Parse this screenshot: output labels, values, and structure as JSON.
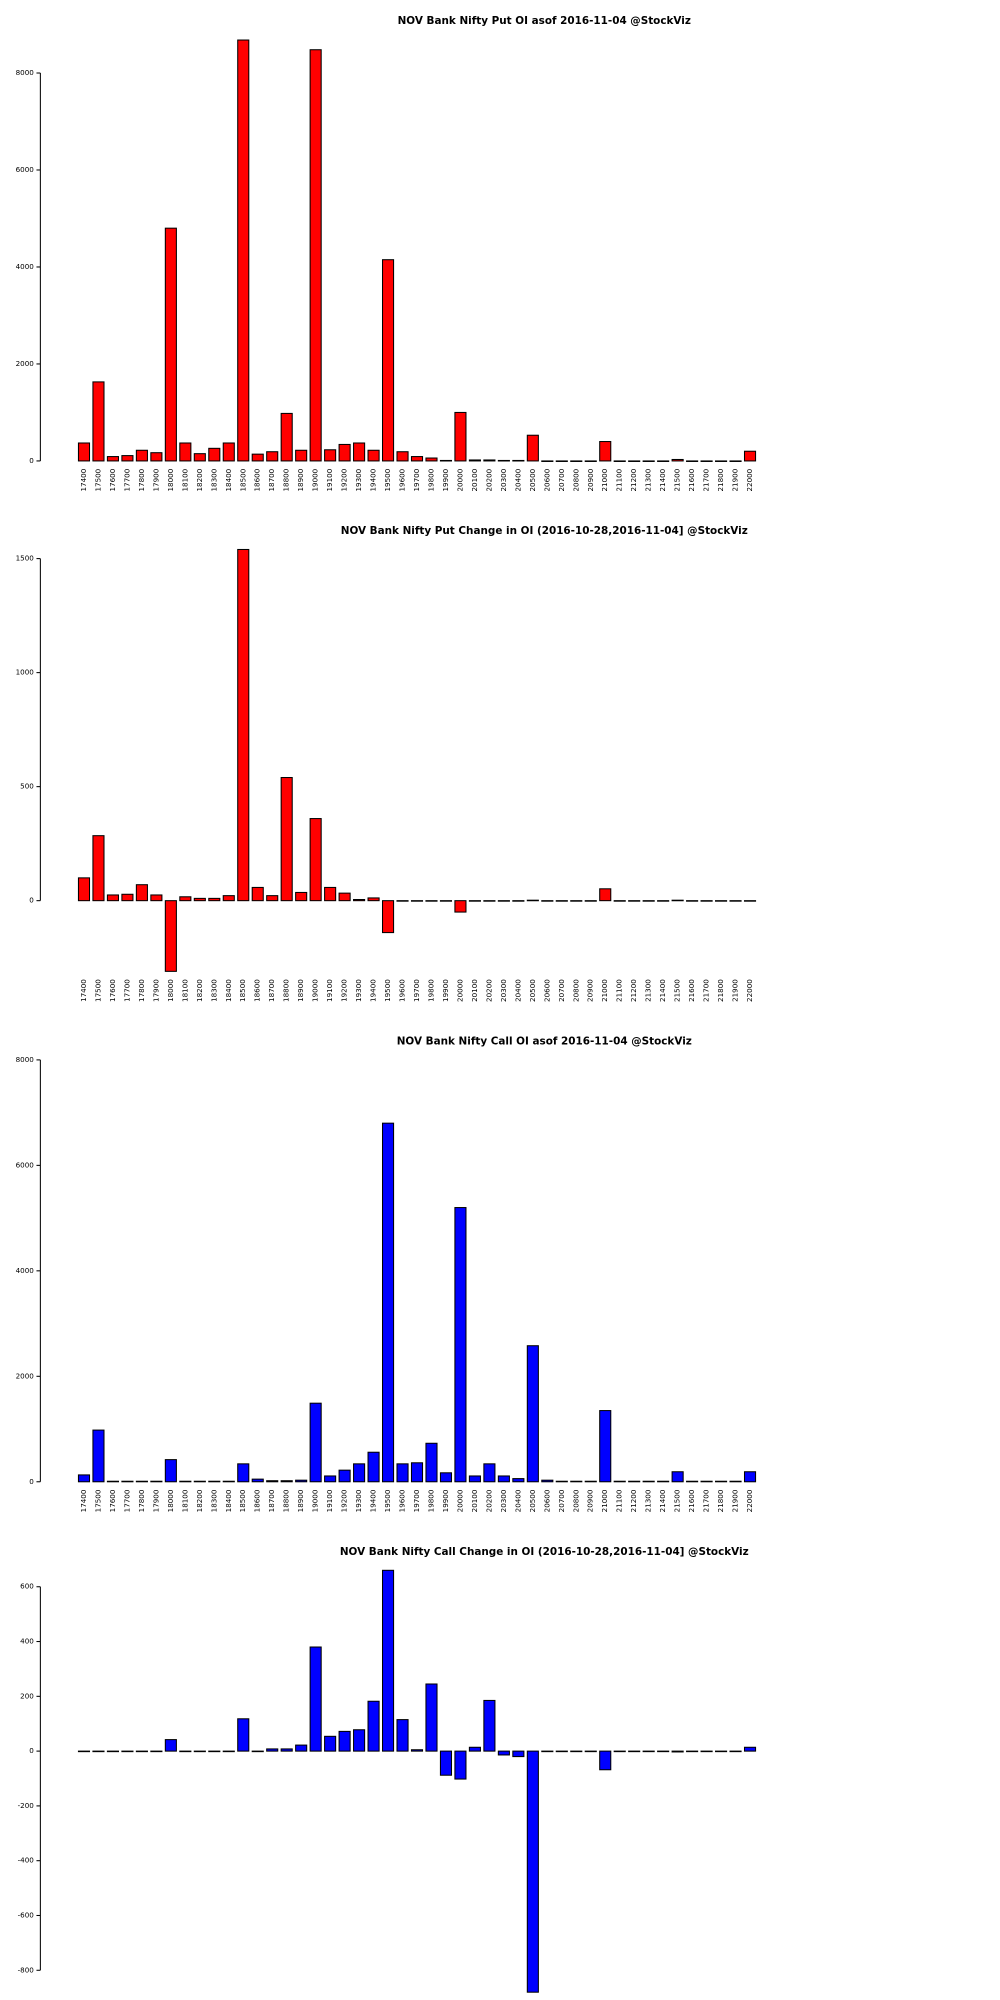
{
  "chart_data": [
    {
      "type": "bar",
      "title": "NOV Bank Nifty Put OI asof 2016-11-04 @StockViz",
      "color": "#ff0000",
      "categories": [
        "17400",
        "17500",
        "17600",
        "17700",
        "17800",
        "17900",
        "18000",
        "18100",
        "18200",
        "18300",
        "18400",
        "18500",
        "18600",
        "18700",
        "18800",
        "18900",
        "19000",
        "19100",
        "19200",
        "19300",
        "19400",
        "19500",
        "19600",
        "19700",
        "19800",
        "19900",
        "20000",
        "20100",
        "20200",
        "20300",
        "20400",
        "20500",
        "20600",
        "20700",
        "20800",
        "20900",
        "21000",
        "21100",
        "21200",
        "21300",
        "21400",
        "21500",
        "21600",
        "21700",
        "21800",
        "21900",
        "22000"
      ],
      "values": [
        370,
        1630,
        90,
        110,
        220,
        170,
        4800,
        370,
        150,
        260,
        370,
        8680,
        140,
        190,
        980,
        220,
        8480,
        230,
        340,
        370,
        220,
        4150,
        190,
        90,
        60,
        10,
        1000,
        20,
        20,
        10,
        10,
        530,
        0,
        0,
        0,
        0,
        400,
        0,
        0,
        0,
        0,
        30,
        0,
        0,
        0,
        0,
        200
      ],
      "ylim": [
        0,
        8700
      ],
      "yticks": [
        0,
        2000,
        4000,
        6000,
        8000
      ]
    },
    {
      "type": "bar",
      "title": "NOV Bank Nifty Put Change in OI (2016-10-28,2016-11-04] @StockViz",
      "color": "#ff0000",
      "categories": [
        "17400",
        "17500",
        "17600",
        "17700",
        "17800",
        "17900",
        "18000",
        "18100",
        "18200",
        "18300",
        "18400",
        "18500",
        "18600",
        "18700",
        "18800",
        "18900",
        "19000",
        "19100",
        "19200",
        "19300",
        "19400",
        "19500",
        "19600",
        "19700",
        "19800",
        "19900",
        "20000",
        "20100",
        "20200",
        "20300",
        "20400",
        "20500",
        "20600",
        "20700",
        "20800",
        "20900",
        "21000",
        "21100",
        "21200",
        "21300",
        "21400",
        "21500",
        "21600",
        "21700",
        "21800",
        "21900",
        "22000"
      ],
      "values": [
        100,
        285,
        25,
        28,
        70,
        25,
        -310,
        17,
        10,
        10,
        22,
        1540,
        58,
        22,
        540,
        36,
        360,
        58,
        33,
        5,
        12,
        -140,
        0,
        0,
        0,
        0,
        -50,
        0,
        0,
        0,
        0,
        2,
        0,
        0,
        0,
        0,
        52,
        0,
        0,
        0,
        0,
        2,
        0,
        0,
        0,
        0,
        0
      ],
      "ylim": [
        -310,
        1540
      ],
      "yticks": [
        0,
        500,
        1000,
        1500
      ]
    },
    {
      "type": "bar",
      "title": "NOV Bank Nifty Call OI asof 2016-11-04 @StockViz",
      "color": "#0000ff",
      "categories": [
        "17400",
        "17500",
        "17600",
        "17700",
        "17800",
        "17900",
        "18000",
        "18100",
        "18200",
        "18300",
        "18400",
        "18500",
        "18600",
        "18700",
        "18800",
        "18900",
        "19000",
        "19100",
        "19200",
        "19300",
        "19400",
        "19500",
        "19600",
        "19700",
        "19800",
        "19900",
        "20000",
        "20100",
        "20200",
        "20300",
        "20400",
        "20500",
        "20600",
        "20700",
        "20800",
        "20900",
        "21000",
        "21100",
        "21200",
        "21300",
        "21400",
        "21500",
        "21600",
        "21700",
        "21800",
        "21900",
        "22000"
      ],
      "values": [
        130,
        980,
        10,
        10,
        10,
        10,
        420,
        10,
        10,
        10,
        10,
        340,
        50,
        20,
        20,
        30,
        1490,
        110,
        220,
        340,
        560,
        6800,
        340,
        360,
        730,
        170,
        5200,
        110,
        340,
        110,
        60,
        2580,
        30,
        10,
        10,
        10,
        1350,
        10,
        10,
        10,
        10,
        190,
        10,
        10,
        10,
        10,
        190
      ],
      "ylim": [
        0,
        8000
      ],
      "yticks": [
        0,
        2000,
        4000,
        6000,
        8000
      ]
    },
    {
      "type": "bar",
      "title": "NOV Bank Nifty Call Change in OI (2016-10-28,2016-11-04] @StockViz",
      "color": "#0000ff",
      "categories": [
        "17400",
        "17500",
        "17600",
        "17700",
        "17800",
        "17900",
        "18000",
        "18100",
        "18200",
        "18300",
        "18400",
        "18500",
        "18600",
        "18700",
        "18800",
        "18900",
        "19000",
        "19100",
        "19200",
        "19300",
        "19400",
        "19500",
        "19600",
        "19700",
        "19800",
        "19900",
        "20000",
        "20100",
        "20200",
        "20300",
        "20400",
        "20500",
        "20600",
        "20700",
        "20800",
        "20900",
        "21000",
        "21100",
        "21200",
        "21300",
        "21400",
        "21500",
        "21600",
        "21700",
        "21800",
        "21900",
        "22000"
      ],
      "values": [
        0,
        0,
        0,
        0,
        0,
        0,
        42,
        0,
        0,
        0,
        0,
        118,
        0,
        8,
        8,
        22,
        380,
        54,
        72,
        78,
        182,
        660,
        115,
        5,
        245,
        -88,
        -102,
        14,
        185,
        -14,
        -20,
        -880,
        0,
        0,
        0,
        0,
        -68,
        0,
        0,
        0,
        0,
        -3,
        0,
        0,
        0,
        0,
        14
      ],
      "ylim": [
        -880,
        660
      ],
      "yticks": [
        -800,
        -600,
        -400,
        -200,
        0,
        200,
        400,
        600
      ]
    }
  ]
}
